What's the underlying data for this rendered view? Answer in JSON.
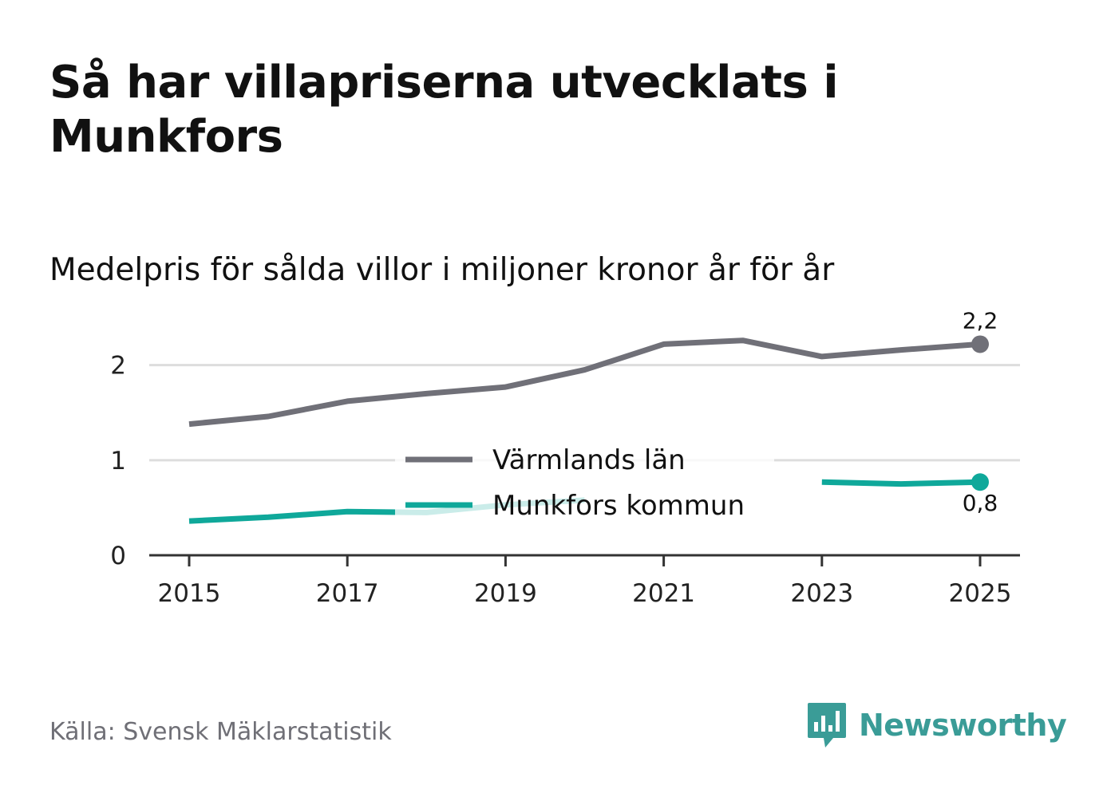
{
  "header": {
    "title": "Så har villapriserna utvecklats i Munkfors",
    "subtitle": "Medelpris för sålda villor i miljoner kronor år för år"
  },
  "footer": {
    "source": "Källa: Svensk Mäklarstatistik",
    "brand": "Newsworthy"
  },
  "colors": {
    "region": "#707078",
    "municipality": "#0fa89a",
    "brand": "#3a9c97",
    "grid": "#dddddd"
  },
  "chart_data": {
    "type": "line",
    "title": "Medelpris för sålda villor i miljoner kronor år för år",
    "xlabel": "",
    "ylabel": "",
    "x": [
      2015,
      2016,
      2017,
      2018,
      2019,
      2020,
      2021,
      2022,
      2023,
      2024,
      2025
    ],
    "xticks": [
      "2015",
      "2017",
      "2019",
      "2021",
      "2023",
      "2025"
    ],
    "yticks": [
      "0",
      "1",
      "2"
    ],
    "ylim": [
      0,
      2.4
    ],
    "grid": true,
    "legend_position": "center",
    "series": [
      {
        "name": "Värmlands län",
        "values": [
          1.38,
          1.46,
          1.62,
          1.7,
          1.77,
          1.95,
          2.22,
          2.26,
          2.09,
          2.16,
          2.22
        ],
        "end_label": "2,2"
      },
      {
        "name": "Munkfors kommun",
        "values": [
          0.36,
          0.4,
          0.46,
          0.45,
          0.53,
          0.58,
          null,
          null,
          0.77,
          0.75,
          0.77
        ],
        "end_label": "0,8"
      }
    ]
  }
}
